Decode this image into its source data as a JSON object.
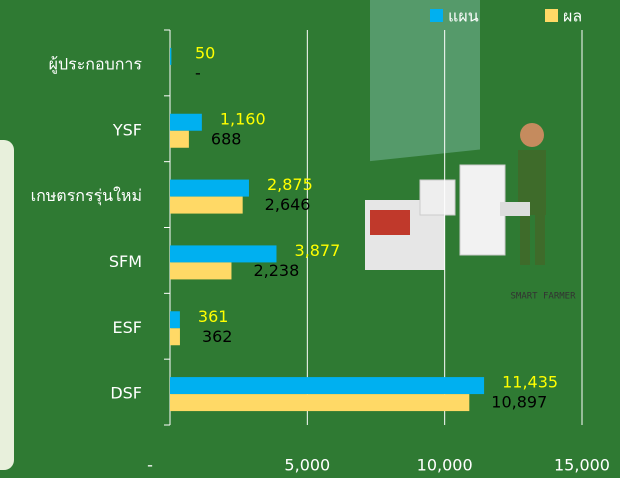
{
  "chart_data": {
    "type": "barh",
    "categories": [
      "ผู้ประกอบการ",
      "YSF",
      "เกษตรกรรุ่นใหม่",
      "SFM",
      "ESF",
      "DSF"
    ],
    "series": [
      {
        "name": "แผน",
        "color": "#00b0f0",
        "values": [
          50,
          1160,
          2875,
          3877,
          361,
          11435
        ],
        "value_labels": [
          "50",
          "1,160",
          "2,875",
          "3,877",
          "361",
          "11,435"
        ]
      },
      {
        "name": "ผล",
        "color": "#ffd966",
        "values": [
          0,
          688,
          2646,
          2238,
          362,
          10897
        ],
        "value_labels": [
          "-",
          "688",
          "2,646",
          "2,238",
          "362",
          "10,897"
        ]
      }
    ],
    "xlim": [
      0,
      15000
    ],
    "xticks": [
      {
        "value": 0,
        "label": "-"
      },
      {
        "value": 5000,
        "label": "5,000"
      },
      {
        "value": 10000,
        "label": "10,000"
      },
      {
        "value": 15000,
        "label": "15,000"
      }
    ],
    "grid": true,
    "legend": "top-right",
    "annotations": [
      "SMART FARMER"
    ]
  }
}
